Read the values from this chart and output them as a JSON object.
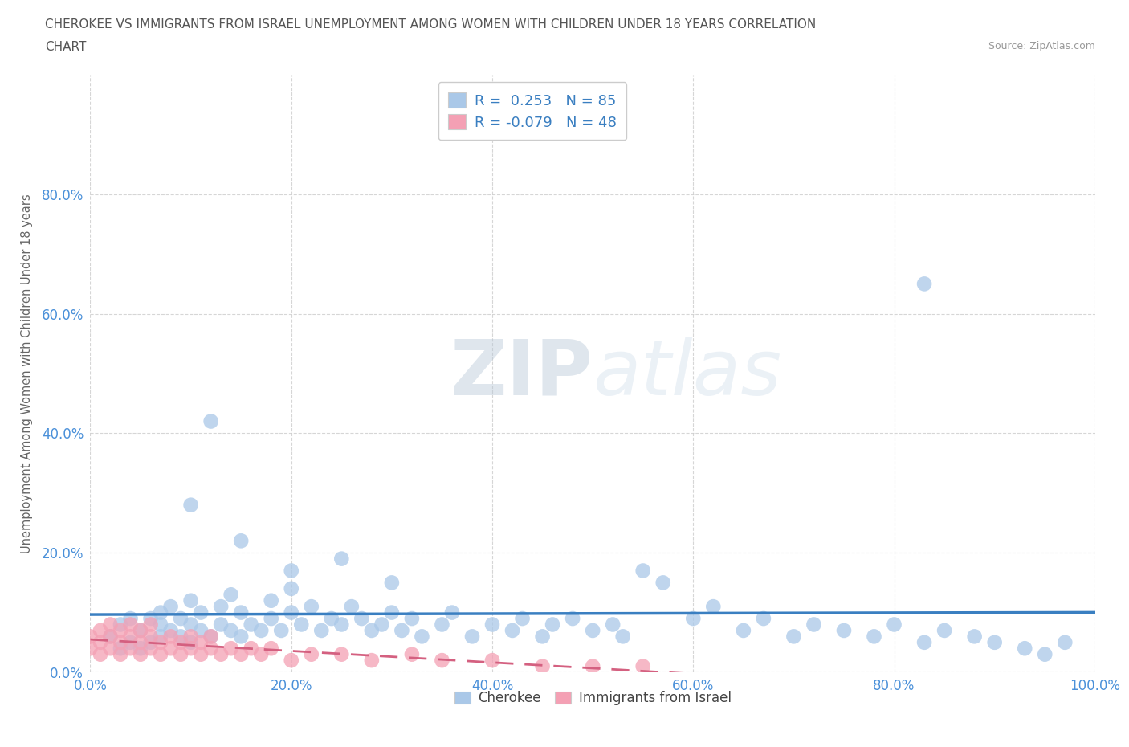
{
  "title_line1": "CHEROKEE VS IMMIGRANTS FROM ISRAEL UNEMPLOYMENT AMONG WOMEN WITH CHILDREN UNDER 18 YEARS CORRELATION",
  "title_line2": "CHART",
  "source": "Source: ZipAtlas.com",
  "ylabel": "Unemployment Among Women with Children Under 18 years",
  "xlim": [
    0,
    1.0
  ],
  "ylim": [
    0,
    1.0
  ],
  "xtick_labels": [
    "0.0%",
    "20.0%",
    "40.0%",
    "60.0%",
    "80.0%",
    "100.0%"
  ],
  "xtick_vals": [
    0.0,
    0.2,
    0.4,
    0.6,
    0.8,
    1.0
  ],
  "ytick_labels": [
    "0.0%",
    "20.0%",
    "40.0%",
    "60.0%",
    "80.0%"
  ],
  "ytick_vals": [
    0.0,
    0.2,
    0.4,
    0.6,
    0.8
  ],
  "cherokee_color": "#aac8e8",
  "israel_color": "#f4a0b4",
  "trend_cherokee_color": "#3a7fc1",
  "trend_israel_color": "#d46080",
  "R_cherokee": 0.253,
  "N_cherokee": 85,
  "R_israel": -0.079,
  "N_israel": 48,
  "watermark_zip": "ZIP",
  "watermark_atlas": "atlas",
  "background_color": "#ffffff",
  "grid_color": "#cccccc",
  "title_color": "#555555",
  "tick_color": "#4a90d9",
  "legend_label_color": "#3a7fc1"
}
